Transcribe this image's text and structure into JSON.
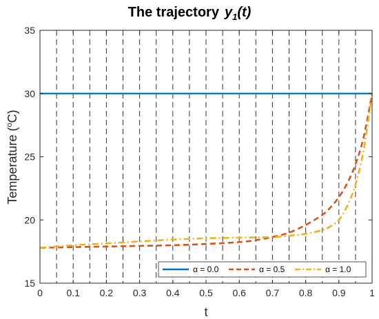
{
  "chart_data": {
    "type": "line",
    "title_main": "The trajectory",
    "title_var": "y",
    "title_sub": "1",
    "title_arg": "(t)",
    "xlabel": "t",
    "ylabel_main": "Temperature (",
    "ylabel_sup": "o",
    "ylabel_unit": "C)",
    "xlim": [
      0,
      1
    ],
    "ylim": [
      15,
      35
    ],
    "xticks": [
      0,
      0.1,
      0.2,
      0.3,
      0.4,
      0.5,
      0.6,
      0.7,
      0.8,
      0.9,
      1
    ],
    "xtick_labels": [
      "0",
      "0.1",
      "0.2",
      "0.3",
      "0.4",
      "0.5",
      "0.6",
      "0.7",
      "0.8",
      "0.9",
      "1"
    ],
    "yticks": [
      15,
      20,
      25,
      30,
      35
    ],
    "ytick_labels": [
      "15",
      "20",
      "25",
      "30",
      "35"
    ],
    "vertical_dashed_lines": [
      0.05,
      0.1,
      0.15,
      0.2,
      0.25,
      0.3,
      0.35,
      0.4,
      0.45,
      0.5,
      0.55,
      0.6,
      0.65,
      0.7,
      0.75,
      0.8,
      0.85,
      0.9,
      0.95
    ],
    "legend_position": "bottom-right",
    "series": [
      {
        "name": "α = 0.0",
        "color": "#0072BD",
        "style": "solid",
        "x": [
          0,
          1
        ],
        "y": [
          30,
          30
        ]
      },
      {
        "name": "α = 0.5",
        "color": "#D95319",
        "style": "dashed",
        "x": [
          0,
          0.1,
          0.2,
          0.3,
          0.4,
          0.5,
          0.6,
          0.65,
          0.7,
          0.75,
          0.8,
          0.85,
          0.875,
          0.9,
          0.925,
          0.95,
          0.975,
          1.0
        ],
        "y": [
          17.8,
          17.85,
          17.9,
          17.95,
          18.0,
          18.1,
          18.25,
          18.4,
          18.65,
          19.0,
          19.6,
          20.4,
          21.0,
          21.8,
          22.9,
          24.4,
          26.6,
          30.0
        ]
      },
      {
        "name": "α = 1.0",
        "color": "#EDB120",
        "style": "dashdot",
        "x": [
          0,
          0.1,
          0.2,
          0.3,
          0.4,
          0.5,
          0.6,
          0.7,
          0.75,
          0.8,
          0.85,
          0.875,
          0.9,
          0.925,
          0.95,
          0.975,
          1.0
        ],
        "y": [
          17.8,
          18.0,
          18.15,
          18.3,
          18.45,
          18.55,
          18.6,
          18.65,
          18.75,
          18.9,
          19.2,
          19.5,
          20.0,
          21.1,
          22.8,
          25.6,
          30.0
        ]
      }
    ]
  }
}
